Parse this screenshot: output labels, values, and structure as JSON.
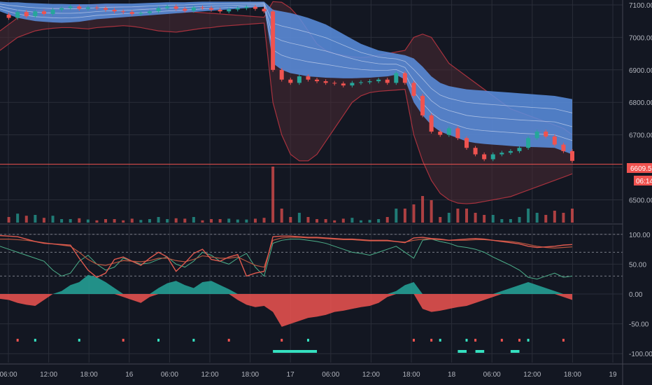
{
  "colors": {
    "background": "#131722",
    "grid": "#2a2e39",
    "axis_text": "#b2b5be",
    "band_fill": "#5b8fe0",
    "band_lines": "#cfd8f0",
    "outer_band_fill": "#4a2a33",
    "outer_band_line": "#a8323e",
    "candle_up": "#26a69a",
    "candle_down": "#ef5350",
    "price_line": "#ef5350",
    "osc_red": "#e05a4f",
    "osc_green": "#4caf8a",
    "hist_up": "#26a69a",
    "hist_down": "#ef5350",
    "marker_teal": "#35e0c0",
    "marker_red": "#ef5350"
  },
  "price_axis": {
    "ticks": [
      "7100.00",
      "7000.00",
      "6900.00",
      "6800.00",
      "6700.00",
      "6600.00",
      "6500.00"
    ],
    "tick_values": [
      7100,
      7000,
      6900,
      6800,
      6700,
      6600,
      6500
    ],
    "current_price_label": "6609.50",
    "countdown_label": "06:14"
  },
  "osc_axis": {
    "ticks": [
      "100.00",
      "50.00",
      "0.00",
      "-50.00",
      "-100.00"
    ],
    "tick_values": [
      100,
      50,
      0,
      -50,
      -100
    ]
  },
  "time_axis": {
    "labels": [
      "06:00",
      "12:00",
      "18:00",
      "16",
      "06:00",
      "12:00",
      "18:00",
      "17",
      "06:00",
      "12:00",
      "18:00",
      "18",
      "06:00",
      "12:00",
      "18:00",
      "19"
    ]
  },
  "chart_data": {
    "type": "line",
    "ylim": [
      6430,
      7115
    ],
    "current_price": 6609.5,
    "series": [
      {
        "key": "close",
        "values": [
          7070,
          7060,
          7078,
          7065,
          7080,
          7072,
          7085,
          7090,
          7095,
          7088,
          7092,
          7090,
          7085,
          7080,
          7078,
          7072,
          7075,
          7080,
          7090,
          7095,
          7088,
          7082,
          7092,
          7090,
          7085,
          7080,
          7086,
          7090,
          7094,
          7088,
          7080,
          6900,
          6870,
          6860,
          6880,
          6870,
          6865,
          6860,
          6858,
          6852,
          6860,
          6862,
          6865,
          6870,
          6860,
          6890,
          6860,
          6820,
          6760,
          6710,
          6700,
          6720,
          6690,
          6660,
          6640,
          6625,
          6640,
          6645,
          6650,
          6660,
          6690,
          6710,
          6695,
          6670,
          6650,
          6620
        ]
      },
      {
        "key": "band_upper",
        "values": [
          7110,
          7108,
          7108,
          7106,
          7105,
          7104,
          7103,
          7103,
          7102,
          7102,
          7102,
          7103,
          7104,
          7104,
          7104,
          7104,
          7105,
          7106,
          7107,
          7108,
          7108,
          7108,
          7109,
          7110,
          7110,
          7110,
          7110,
          7110,
          7110,
          7110,
          7110,
          7085,
          7080,
          7075,
          7068,
          7060,
          7050,
          7040,
          7025,
          7010,
          6995,
          6980,
          6970,
          6960,
          6955,
          6950,
          6945,
          6935,
          6910,
          6880,
          6860,
          6850,
          6845,
          6840,
          6838,
          6836,
          6834,
          6832,
          6830,
          6828,
          6826,
          6824,
          6822,
          6820,
          6815,
          6810
        ]
      },
      {
        "key": "band_lower",
        "values": [
          7080,
          7070,
          7060,
          7055,
          7050,
          7048,
          7046,
          7045,
          7046,
          7048,
          7052,
          7056,
          7058,
          7060,
          7062,
          7064,
          7066,
          7068,
          7070,
          7072,
          7074,
          7076,
          7078,
          7080,
          7082,
          7084,
          7086,
          7088,
          7090,
          7092,
          7094,
          6920,
          6900,
          6890,
          6885,
          6880,
          6878,
          6876,
          6875,
          6874,
          6874,
          6875,
          6876,
          6878,
          6880,
          6885,
          6870,
          6800,
          6760,
          6730,
          6710,
          6700,
          6690,
          6680,
          6675,
          6672,
          6670,
          6668,
          6666,
          6664,
          6663,
          6662,
          6661,
          6660,
          6650,
          6640
        ]
      },
      {
        "key": "outer_upper",
        "values": [
          7020,
          7040,
          7060,
          7070,
          7080,
          7085,
          7090,
          7092,
          7094,
          7096,
          7098,
          7100,
          7098,
          7096,
          7094,
          7092,
          7090,
          7088,
          7086,
          7084,
          7082,
          7080,
          7078,
          7076,
          7074,
          7072,
          7070,
          7068,
          7066,
          7064,
          7062,
          7110,
          7108,
          7090,
          7060,
          7020,
          6980,
          6960,
          6950,
          6945,
          6940,
          6938,
          6940,
          6945,
          6950,
          6955,
          6960,
          7000,
          7010,
          7000,
          6960,
          6920,
          6900,
          6880,
          6860,
          6840,
          6820,
          6800,
          6780,
          6770,
          6760,
          6750,
          6740,
          6730,
          6720,
          6700
        ]
      },
      {
        "key": "outer_lower",
        "values": [
          6960,
          6980,
          7000,
          7010,
          7020,
          7025,
          7028,
          7030,
          7030,
          7028,
          7026,
          7030,
          7032,
          7034,
          7036,
          7034,
          7030,
          7025,
          7020,
          7018,
          7016,
          7020,
          7024,
          7028,
          7030,
          7034,
          7036,
          7038,
          7040,
          7042,
          7044,
          6800,
          6700,
          6640,
          6620,
          6620,
          6640,
          6680,
          6720,
          6760,
          6800,
          6820,
          6830,
          6834,
          6836,
          6838,
          6840,
          6700,
          6620,
          6560,
          6520,
          6500,
          6490,
          6488,
          6490,
          6495,
          6500,
          6505,
          6510,
          6520,
          6530,
          6540,
          6550,
          6560,
          6570,
          6580
        ]
      },
      {
        "key": "osc_fast",
        "values": [
          98,
          97,
          96,
          92,
          88,
          85,
          84,
          83,
          82,
          60,
          40,
          28,
          35,
          58,
          62,
          55,
          48,
          60,
          70,
          62,
          38,
          52,
          68,
          75,
          58,
          55,
          62,
          66,
          30,
          35,
          38,
          96,
          97,
          97,
          96,
          95,
          95,
          94,
          93,
          92,
          92,
          91,
          90,
          90,
          90,
          88,
          86,
          94,
          95,
          93,
          92,
          90,
          91,
          92,
          93,
          92,
          90,
          88,
          86,
          84,
          80,
          78,
          79,
          80,
          82,
          83
        ]
      },
      {
        "key": "osc_slow",
        "values": [
          92,
          92,
          91,
          90,
          88,
          86,
          84,
          82,
          80,
          70,
          58,
          50,
          48,
          52,
          56,
          55,
          54,
          56,
          60,
          60,
          56,
          54,
          58,
          64,
          62,
          60,
          60,
          62,
          55,
          48,
          45,
          90,
          94,
          95,
          95,
          94,
          94,
          93,
          92,
          91,
          91,
          90,
          89,
          89,
          89,
          88,
          87,
          90,
          92,
          92,
          91,
          90,
          90,
          90,
          91,
          91,
          90,
          89,
          88,
          86,
          83,
          80,
          78,
          77,
          78,
          79
        ]
      },
      {
        "key": "osc_thin",
        "values": [
          80,
          75,
          70,
          65,
          60,
          55,
          40,
          30,
          35,
          55,
          65,
          50,
          40,
          45,
          60,
          55,
          50,
          52,
          58,
          62,
          50,
          45,
          55,
          70,
          65,
          55,
          50,
          60,
          68,
          45,
          30,
          85,
          90,
          92,
          92,
          90,
          88,
          85,
          80,
          75,
          70,
          68,
          65,
          70,
          75,
          80,
          70,
          60,
          90,
          92,
          88,
          85,
          80,
          78,
          75,
          70,
          62,
          55,
          48,
          40,
          28,
          25,
          30,
          35,
          28,
          30
        ]
      },
      {
        "key": "histogram",
        "values": [
          -8,
          -10,
          -15,
          -18,
          -20,
          -10,
          0,
          5,
          15,
          20,
          32,
          28,
          20,
          10,
          -5,
          -10,
          -15,
          -5,
          10,
          18,
          22,
          15,
          10,
          20,
          22,
          15,
          8,
          -10,
          -18,
          -22,
          -20,
          -30,
          -55,
          -50,
          -45,
          -40,
          -38,
          -35,
          -30,
          -28,
          -25,
          -22,
          -20,
          -15,
          -5,
          5,
          15,
          20,
          -25,
          -30,
          -28,
          -25,
          -22,
          -20,
          -15,
          -10,
          -5,
          5,
          10,
          15,
          20,
          15,
          10,
          5,
          -5,
          -10
        ]
      }
    ],
    "signal_dots": {
      "teal": [
        4,
        9,
        18,
        22,
        35,
        50,
        53,
        60
      ],
      "red": [
        2,
        14,
        26,
        32,
        47,
        49,
        54,
        57,
        59,
        64
      ]
    },
    "signal_bars": {
      "teal_ranges": [
        [
          31,
          36
        ],
        [
          52,
          53
        ],
        [
          54,
          55
        ],
        [
          58,
          59
        ]
      ]
    }
  }
}
